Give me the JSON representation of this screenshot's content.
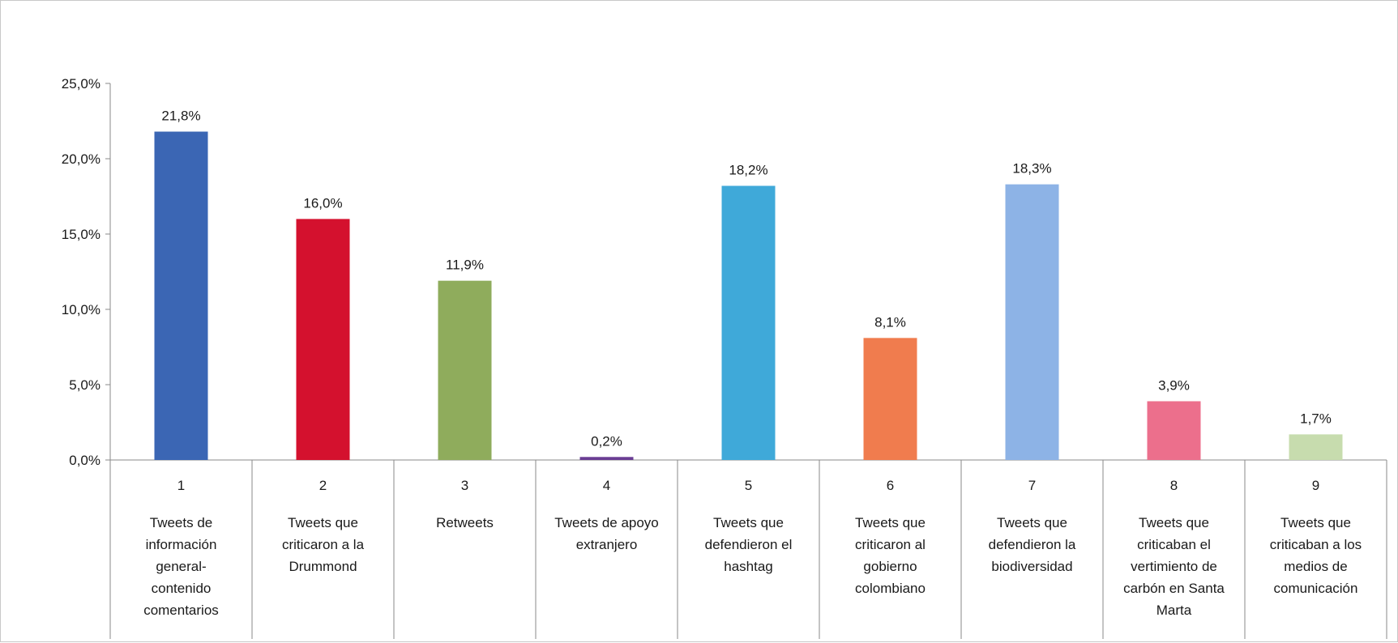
{
  "chart_data": {
    "type": "bar",
    "categories": [
      "1",
      "2",
      "3",
      "4",
      "5",
      "6",
      "7",
      "8",
      "9"
    ],
    "category_labels": [
      [
        "Tweets de",
        "información",
        "general-",
        "contenido",
        "comentarios"
      ],
      [
        "Tweets que",
        "criticaron a la",
        "Drummond"
      ],
      [
        "Retweets"
      ],
      [
        "Tweets de apoyo",
        "extranjero"
      ],
      [
        "Tweets que",
        "defendieron el",
        "hashtag"
      ],
      [
        "Tweets que",
        "criticaron al",
        "gobierno",
        "colombiano"
      ],
      [
        "Tweets que",
        "defendieron la",
        "biodiversidad"
      ],
      [
        "Tweets que",
        "criticaban el",
        "vertimiento de",
        "carbón en Santa",
        "Marta"
      ],
      [
        "Tweets que",
        "criticaban a los",
        "medios de",
        "comunicación"
      ]
    ],
    "values": [
      21.8,
      16.0,
      11.9,
      0.2,
      18.2,
      8.1,
      18.3,
      3.9,
      1.7
    ],
    "data_labels": [
      "21,8%",
      "16,0%",
      "11,9%",
      "0,2%",
      "18,2%",
      "8,1%",
      "18,3%",
      "3,9%",
      "1,7%"
    ],
    "colors": [
      "#3b66b4",
      "#d4112e",
      "#8fac5c",
      "#6a3d94",
      "#3fa9d9",
      "#f07c4e",
      "#8db3e6",
      "#ec6f8c",
      "#c7dcae"
    ],
    "ylim": [
      0,
      25
    ],
    "yticks": [
      0,
      5,
      10,
      15,
      20,
      25
    ],
    "ytick_labels": [
      "0,0%",
      "5,0%",
      "10,0%",
      "15,0%",
      "20,0%",
      "25,0%"
    ],
    "title": "",
    "xlabel": "",
    "ylabel": "",
    "grid": false,
    "legend": "none"
  }
}
